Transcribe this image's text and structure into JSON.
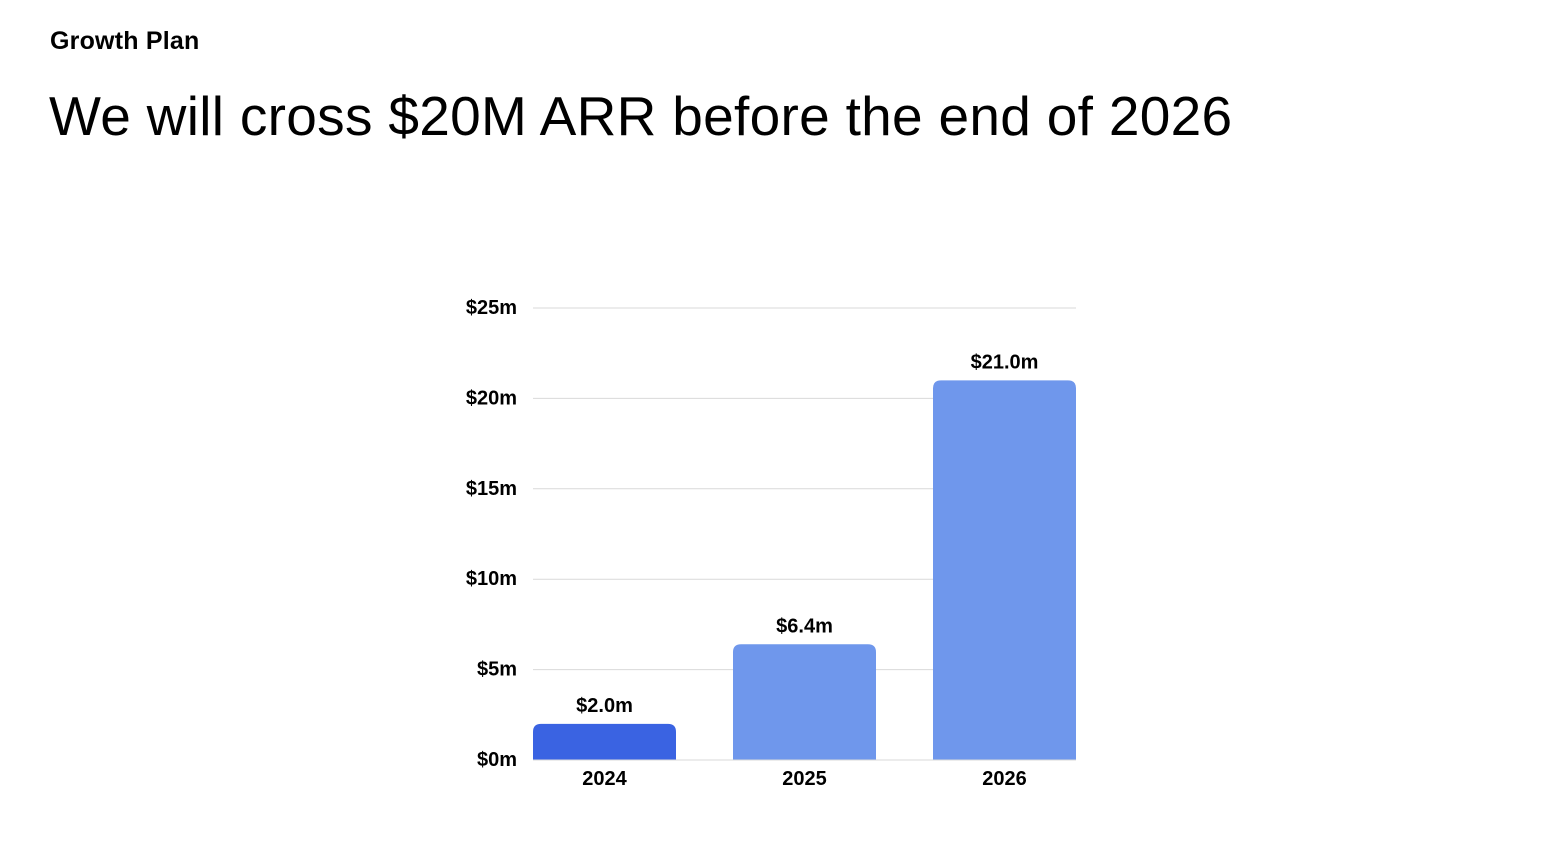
{
  "header": {
    "eyebrow": "Growth Plan",
    "title": "We will cross $20M ARR before the end of 2026"
  },
  "chart_data": {
    "type": "bar",
    "title": "",
    "xlabel": "",
    "ylabel": "",
    "categories": [
      "2024",
      "2025",
      "2026"
    ],
    "values": [
      2.0,
      6.4,
      21.0
    ],
    "data_labels": [
      "$2.0m",
      "$6.4m",
      "$21.0m"
    ],
    "ylim": [
      0,
      25
    ],
    "yticks": [
      0,
      5,
      10,
      15,
      20,
      25
    ],
    "ytick_labels": [
      "$0m",
      "$5m",
      "$10m",
      "$15m",
      "$20m",
      "$25m"
    ],
    "grid": true,
    "legend": "none",
    "colors": {
      "highlight": "#3A63E2",
      "bar": "#6F97EC",
      "grid": "#D9D9D9"
    }
  }
}
